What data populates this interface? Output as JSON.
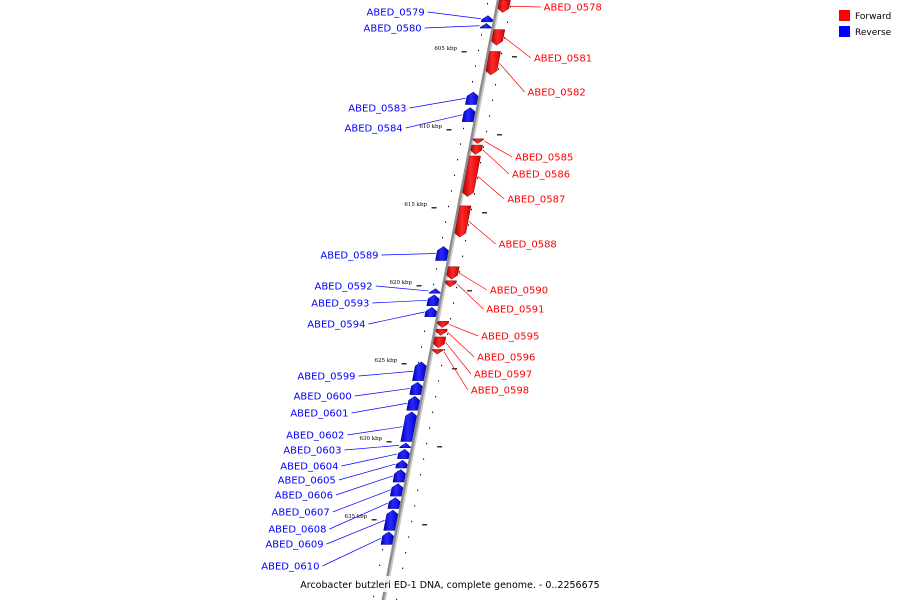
{
  "colors": {
    "forward": "#ff0000",
    "reverse": "#0000ff",
    "backbone": "#8c8c8c"
  },
  "legend": [
    {
      "label": "Forward",
      "color": "#ff0000"
    },
    {
      "label": "Reverse",
      "color": "#0000ff"
    }
  ],
  "caption": "Arcobacter butzleri ED-1 DNA, complete genome. - 0..2256675",
  "genes": [
    {
      "id": "ABED_0578",
      "strand": "forward",
      "start": 602.0,
      "end": 602.8
    },
    {
      "id": "ABED_0579",
      "strand": "reverse",
      "start": 603.0,
      "end": 603.4
    },
    {
      "id": "ABED_0580",
      "strand": "reverse",
      "start": 603.5,
      "end": 603.8
    },
    {
      "id": "ABED_0581",
      "strand": "forward",
      "start": 603.9,
      "end": 604.9
    },
    {
      "id": "ABED_0582",
      "strand": "forward",
      "start": 605.3,
      "end": 606.8
    },
    {
      "id": "ABED_0583",
      "strand": "reverse",
      "start": 607.9,
      "end": 608.7
    },
    {
      "id": "ABED_0584",
      "strand": "reverse",
      "start": 608.9,
      "end": 609.8
    },
    {
      "id": "ABED_0585",
      "strand": "forward",
      "start": 610.9,
      "end": 611.2
    },
    {
      "id": "ABED_0586",
      "strand": "forward",
      "start": 611.3,
      "end": 611.9
    },
    {
      "id": "ABED_0587",
      "strand": "forward",
      "start": 612.0,
      "end": 614.6
    },
    {
      "id": "ABED_0588",
      "strand": "forward",
      "start": 615.2,
      "end": 617.2
    },
    {
      "id": "ABED_0589",
      "strand": "reverse",
      "start": 617.8,
      "end": 618.7
    },
    {
      "id": "ABED_0590",
      "strand": "forward",
      "start": 619.1,
      "end": 619.9
    },
    {
      "id": "ABED_0591",
      "strand": "forward",
      "start": 620.0,
      "end": 620.4
    },
    {
      "id": "ABED_0592",
      "strand": "reverse",
      "start": 620.5,
      "end": 620.8
    },
    {
      "id": "ABED_0593",
      "strand": "reverse",
      "start": 620.9,
      "end": 621.6
    },
    {
      "id": "ABED_0594",
      "strand": "reverse",
      "start": 621.7,
      "end": 622.3
    },
    {
      "id": "ABED_0595",
      "strand": "forward",
      "start": 622.6,
      "end": 623.0
    },
    {
      "id": "ABED_0596",
      "strand": "forward",
      "start": 623.1,
      "end": 623.5
    },
    {
      "id": "ABED_0597",
      "strand": "forward",
      "start": 623.6,
      "end": 624.3
    },
    {
      "id": "ABED_0598",
      "strand": "forward",
      "start": 624.4,
      "end": 624.7
    },
    {
      "id": "ABED_0599",
      "strand": "reverse",
      "start": 625.2,
      "end": 626.4
    },
    {
      "id": "ABED_0600",
      "strand": "reverse",
      "start": 626.5,
      "end": 627.3
    },
    {
      "id": "ABED_0601",
      "strand": "reverse",
      "start": 627.4,
      "end": 628.3
    },
    {
      "id": "ABED_0602",
      "strand": "reverse",
      "start": 628.4,
      "end": 630.3
    },
    {
      "id": "ABED_0603",
      "strand": "reverse",
      "start": 630.4,
      "end": 630.7
    },
    {
      "id": "ABED_0604",
      "strand": "reverse",
      "start": 630.8,
      "end": 631.4
    },
    {
      "id": "ABED_0605",
      "strand": "reverse",
      "start": 631.5,
      "end": 632.0
    },
    {
      "id": "ABED_0606",
      "strand": "reverse",
      "start": 632.1,
      "end": 632.9
    },
    {
      "id": "ABED_0607",
      "strand": "reverse",
      "start": 633.0,
      "end": 633.8
    },
    {
      "id": "ABED_0608",
      "strand": "reverse",
      "start": 633.9,
      "end": 634.6
    },
    {
      "id": "ABED_0609",
      "strand": "reverse",
      "start": 634.7,
      "end": 636.0
    },
    {
      "id": "ABED_0610",
      "strand": "reverse",
      "start": 636.1,
      "end": 636.9
    }
  ],
  "ticks": [
    {
      "kbp": 605,
      "label": "605 kbp"
    },
    {
      "kbp": 610,
      "label": "610 kbp"
    },
    {
      "kbp": 615,
      "label": "615 kbp"
    },
    {
      "kbp": 620,
      "label": "620 kbp"
    },
    {
      "kbp": 625,
      "label": "625 kbp"
    },
    {
      "kbp": 630,
      "label": "630 kbp"
    },
    {
      "kbp": 635,
      "label": "635 kbp"
    }
  ]
}
